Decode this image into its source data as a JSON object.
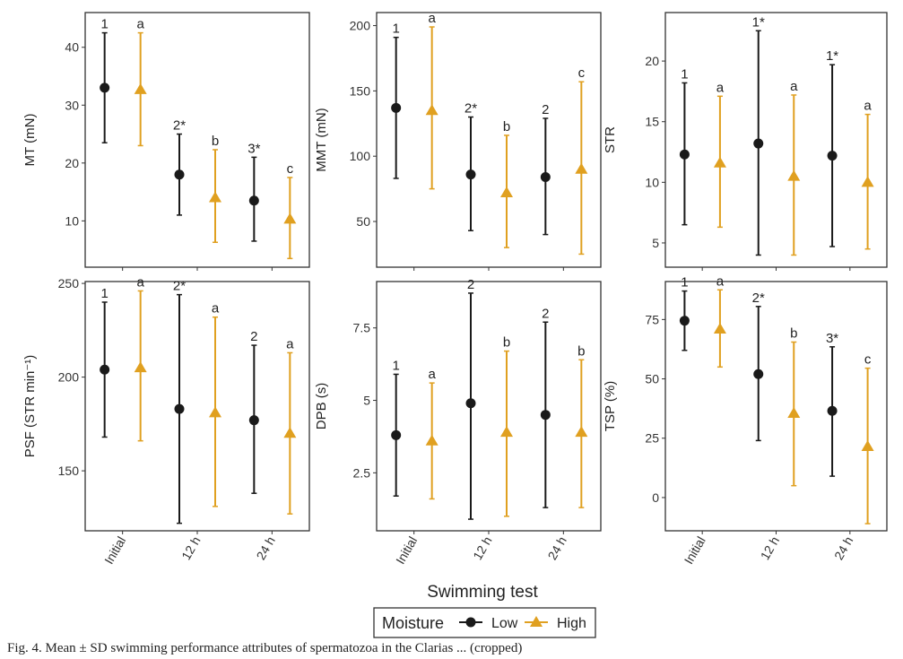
{
  "figure": {
    "x_axis_title": "Swimming test",
    "legend": {
      "title": "Moisture",
      "entries": [
        "Low",
        "High"
      ],
      "placement": "bottom-center"
    },
    "colors": {
      "low": "#1a1a1a",
      "high": "#e0a020",
      "panel_border": "#333333"
    },
    "caption": "Fig. 4. Mean ± SD swimming performance attributes of spermatozoa in the Clarias ... (cropped)"
  },
  "chart_data": [
    {
      "type": "scatter",
      "ylabel": "MT (mN)",
      "ylim": [
        2,
        46
      ],
      "yticks": [
        10,
        20,
        30,
        40
      ],
      "categories": [
        "Initial",
        "12 h",
        "24 h"
      ],
      "series": [
        {
          "name": "Low",
          "values": [
            33,
            18,
            13.5
          ],
          "err_low": [
            23.5,
            11,
            6.5
          ],
          "err_high": [
            42.5,
            25,
            21
          ]
        },
        {
          "name": "High",
          "values": [
            32.7,
            14,
            10.3
          ],
          "err_low": [
            23,
            6.3,
            3.5
          ],
          "err_high": [
            42.5,
            22.3,
            17.5
          ]
        }
      ],
      "letters_low": [
        "1",
        "2*",
        "3*"
      ],
      "letters_high": [
        "a",
        "b",
        "c"
      ]
    },
    {
      "type": "scatter",
      "ylabel": "MMT (mN)",
      "ylim": [
        15,
        210
      ],
      "yticks": [
        50,
        100,
        150,
        200
      ],
      "categories": [
        "Initial",
        "12 h",
        "24 h"
      ],
      "series": [
        {
          "name": "Low",
          "values": [
            137,
            86,
            84
          ],
          "err_low": [
            83,
            43,
            40
          ],
          "err_high": [
            191,
            130,
            129
          ]
        },
        {
          "name": "High",
          "values": [
            135,
            72,
            90
          ],
          "err_low": [
            75,
            30,
            25
          ],
          "err_high": [
            199,
            116,
            157
          ]
        }
      ],
      "letters_low": [
        "1",
        "2*",
        "2"
      ],
      "letters_high": [
        "a",
        "b",
        "c"
      ]
    },
    {
      "type": "scatter",
      "ylabel": "STR",
      "ylim": [
        3,
        24
      ],
      "yticks": [
        5,
        10,
        15,
        20
      ],
      "categories": [
        "Initial",
        "12 h",
        "24 h"
      ],
      "series": [
        {
          "name": "Low",
          "values": [
            12.3,
            13.2,
            12.2
          ],
          "err_low": [
            6.5,
            4,
            4.7
          ],
          "err_high": [
            18.2,
            22.5,
            19.7
          ]
        },
        {
          "name": "High",
          "values": [
            11.6,
            10.5,
            10
          ],
          "err_low": [
            6.3,
            4,
            4.5
          ],
          "err_high": [
            17.1,
            17.2,
            15.6
          ]
        }
      ],
      "letters_low": [
        "1",
        "1*",
        "1*"
      ],
      "letters_high": [
        "a",
        "a",
        "a"
      ]
    },
    {
      "type": "scatter",
      "ylabel": "PSF (STR min⁻¹)",
      "ylim": [
        118,
        251
      ],
      "yticks": [
        150,
        200,
        250
      ],
      "categories": [
        "Initial",
        "12 h",
        "24 h"
      ],
      "series": [
        {
          "name": "Low",
          "values": [
            204,
            183,
            177
          ],
          "err_low": [
            168,
            122,
            138
          ],
          "err_high": [
            240,
            244,
            217
          ]
        },
        {
          "name": "High",
          "values": [
            205,
            181,
            170
          ],
          "err_low": [
            166,
            131,
            127
          ],
          "err_high": [
            246,
            232,
            213
          ]
        }
      ],
      "letters_low": [
        "1",
        "2*",
        "2"
      ],
      "letters_high": [
        "a",
        "a",
        "a"
      ]
    },
    {
      "type": "scatter",
      "ylabel": "DPB (s)",
      "ylim": [
        0.5,
        9.1
      ],
      "yticks": [
        2.5,
        5.0,
        7.5
      ],
      "categories": [
        "Initial",
        "12 h",
        "24 h"
      ],
      "series": [
        {
          "name": "Low",
          "values": [
            3.8,
            4.9,
            4.5
          ],
          "err_low": [
            1.7,
            0.9,
            1.3
          ],
          "err_high": [
            5.9,
            8.7,
            7.7
          ]
        },
        {
          "name": "High",
          "values": [
            3.6,
            3.9,
            3.9
          ],
          "err_low": [
            1.6,
            1,
            1.3
          ],
          "err_high": [
            5.6,
            6.7,
            6.4
          ]
        }
      ],
      "letters_low": [
        "1",
        "2",
        "2"
      ],
      "letters_high": [
        "a",
        "b",
        "b"
      ]
    },
    {
      "type": "scatter",
      "ylabel": "TSP (%)",
      "ylim": [
        -14,
        91
      ],
      "yticks": [
        0,
        25,
        50,
        75
      ],
      "categories": [
        "Initial",
        "12 h",
        "24 h"
      ],
      "series": [
        {
          "name": "Low",
          "values": [
            74.5,
            52,
            36.5
          ],
          "err_low": [
            62,
            24,
            9
          ],
          "err_high": [
            87,
            80.5,
            63.5
          ]
        },
        {
          "name": "High",
          "values": [
            71,
            35.5,
            21.5
          ],
          "err_low": [
            55,
            5,
            -11
          ],
          "err_high": [
            87.5,
            65.5,
            54.5
          ]
        }
      ],
      "letters_low": [
        "1",
        "2*",
        "3*"
      ],
      "letters_high": [
        "a",
        "b",
        "c"
      ]
    }
  ]
}
